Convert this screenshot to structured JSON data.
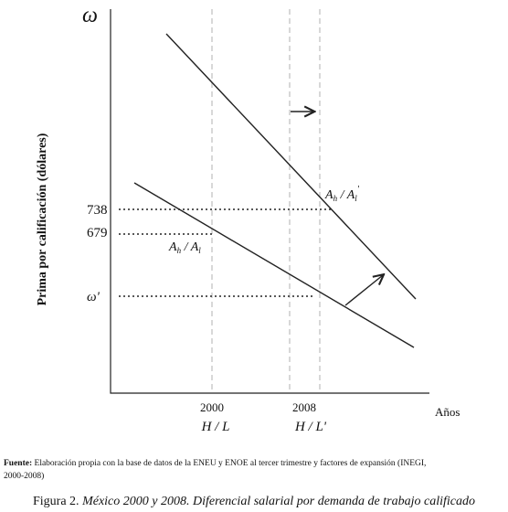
{
  "axes": {
    "y_symbol": "ω",
    "y_label": "Prima por calificación (dólares)",
    "x_label": "Años"
  },
  "levels": [
    {
      "label": "738"
    },
    {
      "label": "679"
    },
    {
      "label": "ω'"
    }
  ],
  "periods": [
    {
      "year": "2000",
      "ratio": "H / L"
    },
    {
      "year": "2008",
      "ratio": "H / L'"
    }
  ],
  "curves": [
    {
      "base1": "A",
      "sub1": "h",
      "sep": " / ",
      "base2": "A",
      "sub2": "l",
      "prime": "'"
    },
    {
      "base1": "A",
      "sub1": "h",
      "sep": " / ",
      "base2": "A",
      "sub2": "l"
    }
  ],
  "source": {
    "lead": "Fuente:",
    "line1": "Elaboración propia con la base de datos de la ENEU y ENOE al tercer trimestre y factores de expansión (INEGI,",
    "line2": "2000-2008)"
  },
  "caption": {
    "label": "Figura 2.",
    "text": "México 2000 y 2008. Diferencial salarial por demanda de trabajo calificado"
  }
}
